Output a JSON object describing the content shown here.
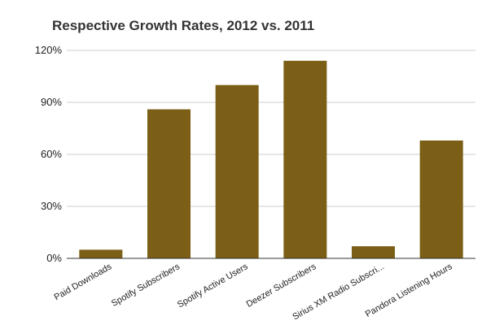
{
  "chart_data": {
    "type": "bar",
    "title": "Respective Growth Rates, 2012 vs. 2011",
    "xlabel": "",
    "ylabel": "",
    "categories": [
      "Paid Downloads",
      "Spotify Subscribers",
      "Spotify Active Users",
      "Deezer Subscribers",
      "Sirius XM Radio Subscri...",
      "Pandora Listening Hours"
    ],
    "values": [
      5,
      86,
      100,
      114,
      7,
      68
    ],
    "ylim": [
      0,
      120
    ],
    "yticks": [
      0,
      30,
      60,
      90,
      120
    ],
    "ytick_labels": [
      "0%",
      "30%",
      "60%",
      "90%",
      "120%"
    ],
    "grid": true,
    "legend": "none",
    "colors": {
      "bar": "#7b5f16",
      "grid": "#cccccc",
      "axis": "#333333",
      "text": "#222222",
      "title": "#333333"
    }
  }
}
